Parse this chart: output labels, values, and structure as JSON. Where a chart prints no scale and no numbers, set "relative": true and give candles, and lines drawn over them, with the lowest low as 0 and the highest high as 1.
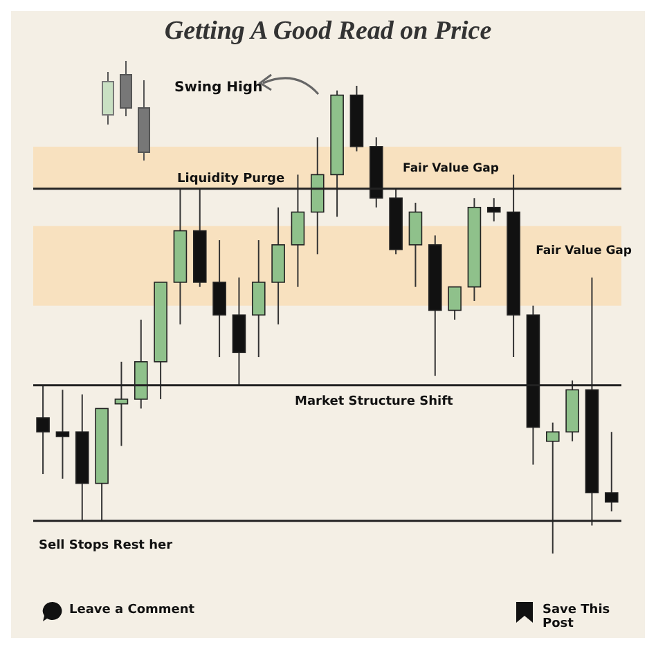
{
  "chart_data": {
    "type": "candlestick",
    "title": "Getting A Good Read on Price",
    "relative": true,
    "categories": [
      null,
      null,
      null,
      null,
      null,
      null,
      null,
      null,
      null,
      null,
      null,
      null,
      null,
      null,
      null,
      null,
      null,
      null,
      null,
      null,
      null,
      null,
      null,
      null,
      null,
      null,
      null,
      null,
      null,
      null
    ],
    "ohlc": [
      [
        0.29,
        0.36,
        0.17,
        0.26
      ],
      [
        0.26,
        0.35,
        0.16,
        0.25
      ],
      [
        0.26,
        0.34,
        0.07,
        0.15
      ],
      [
        0.15,
        0.31,
        0.07,
        0.31
      ],
      [
        0.32,
        0.41,
        0.23,
        0.33
      ],
      [
        0.33,
        0.5,
        0.31,
        0.41
      ],
      [
        0.41,
        0.58,
        0.33,
        0.58
      ],
      [
        0.58,
        0.78,
        0.49,
        0.69
      ],
      [
        0.69,
        0.78,
        0.57,
        0.58
      ],
      [
        0.58,
        0.67,
        0.42,
        0.51
      ],
      [
        0.51,
        0.59,
        0.36,
        0.43
      ],
      [
        0.51,
        0.67,
        0.42,
        0.58
      ],
      [
        0.58,
        0.74,
        0.49,
        0.66
      ],
      [
        0.66,
        0.81,
        0.57,
        0.73
      ],
      [
        0.73,
        0.89,
        0.64,
        0.81
      ],
      [
        0.81,
        0.99,
        0.72,
        0.98
      ],
      [
        0.98,
        1,
        0.86,
        0.87
      ],
      [
        0.87,
        0.89,
        0.74,
        0.76
      ],
      [
        0.76,
        0.78,
        0.64,
        0.65
      ],
      [
        0.66,
        0.75,
        0.57,
        0.73
      ],
      [
        0.66,
        0.68,
        0.38,
        0.52
      ],
      [
        0.52,
        0.57,
        0.5,
        0.57
      ],
      [
        0.57,
        0.76,
        0.54,
        0.74
      ],
      [
        0.74,
        0.76,
        0.71,
        0.73
      ],
      [
        0.73,
        0.81,
        0.42,
        0.51
      ],
      [
        0.51,
        0.53,
        0.19,
        0.27
      ],
      [
        0.24,
        0.28,
        0,
        0.26
      ],
      [
        0.26,
        0.37,
        0.24,
        0.35
      ],
      [
        0.35,
        0.59,
        0.06,
        0.13
      ],
      [
        0.13,
        0.26,
        0.09,
        0.11
      ]
    ],
    "colors": [
      "#111111",
      "#111111",
      "#111111",
      "#8fc18b",
      "#8fc18b",
      "#8fc18b",
      "#8fc18b",
      "#8fc18b",
      "#111111",
      "#111111",
      "#111111",
      "#8fc18b",
      "#8fc18b",
      "#8fc18b",
      "#8fc18b",
      "#8fc18b",
      "#111111",
      "#111111",
      "#111111",
      "#8fc18b",
      "#111111",
      "#8fc18b",
      "#8fc18b",
      "#111111",
      "#111111",
      "#111111",
      "#8fc18b",
      "#8fc18b",
      "#111111",
      "#111111"
    ],
    "ref_lines": [
      {
        "axis": "y",
        "value": 0.78,
        "label": "Liquidity Purge",
        "color": "#222222"
      },
      {
        "axis": "y",
        "value": 0.36,
        "label": "Market Structure Shift",
        "color": "#222222"
      },
      {
        "axis": "y",
        "value": 0.07,
        "label": "Sell Stops Rest her",
        "color": "#222222"
      }
    ],
    "bands": [
      {
        "axis": "y",
        "from": 0.78,
        "to": 0.87,
        "label": "Fair Value Gap",
        "color": "#f9ddb5"
      },
      {
        "axis": "y",
        "from": 0.53,
        "to": 0.7,
        "label": "Fair Value Gap",
        "color": "#f9ddb5"
      }
    ],
    "annotations": [
      "Swing High",
      "Leave a Comment",
      "Save This Post"
    ]
  }
}
